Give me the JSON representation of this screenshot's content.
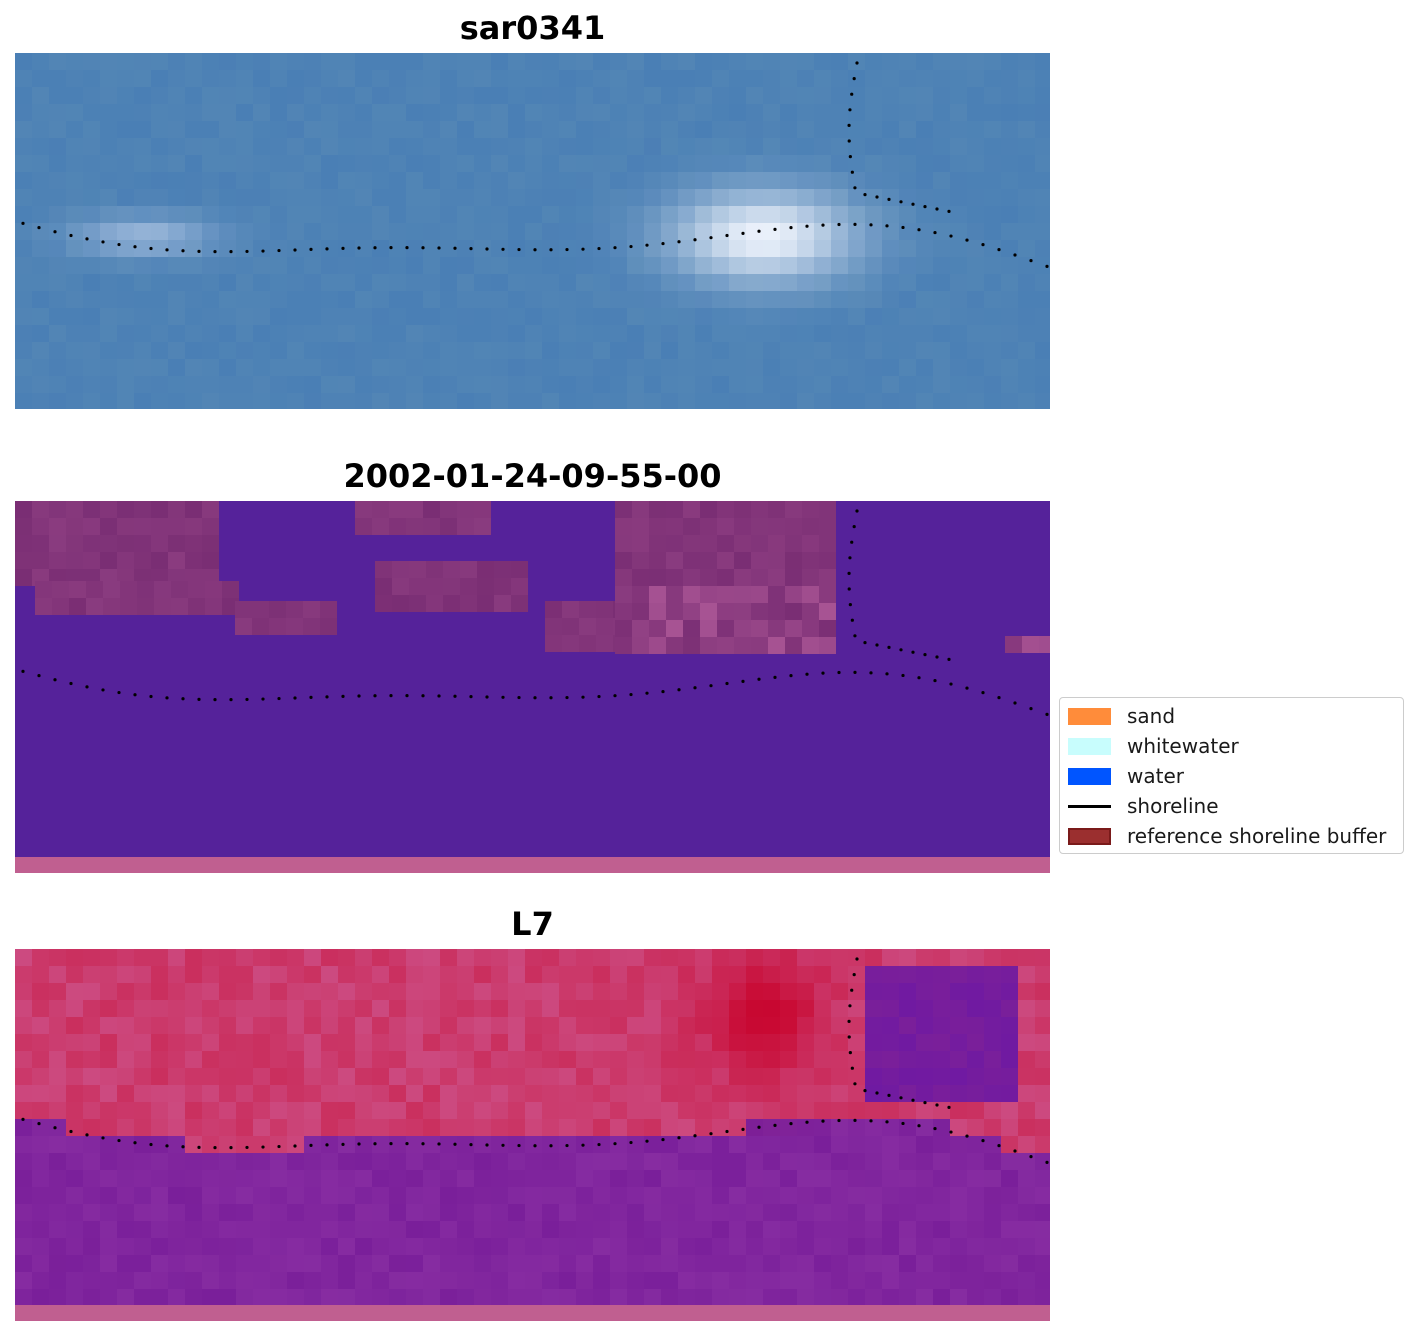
{
  "panels": [
    {
      "title": "sar0341",
      "style": "rgb"
    },
    {
      "title": "2002-01-24-09-55-00",
      "style": "classified"
    },
    {
      "title": "L7",
      "style": "index"
    }
  ],
  "legend": {
    "items": [
      {
        "label": "sand",
        "color": "#ff8c3a",
        "kind": "patch"
      },
      {
        "label": "whitewater",
        "color": "#c8fdfd",
        "kind": "patch"
      },
      {
        "label": "water",
        "color": "#0055ff",
        "kind": "patch"
      },
      {
        "label": "shoreline",
        "color": "#000000",
        "kind": "line"
      },
      {
        "label": "reference shoreline buffer",
        "color": "#9b2f2f",
        "kind": "patch",
        "edge": "#7a1a1a"
      }
    ]
  },
  "colors": {
    "rgb_base": "#4a7fb5",
    "classified_water": "#55229a",
    "classified_sand": "#7a2e74",
    "buffer_strip": "#c05f90",
    "index_land": "#cc4a80",
    "index_water": "#7a1f9a"
  }
}
